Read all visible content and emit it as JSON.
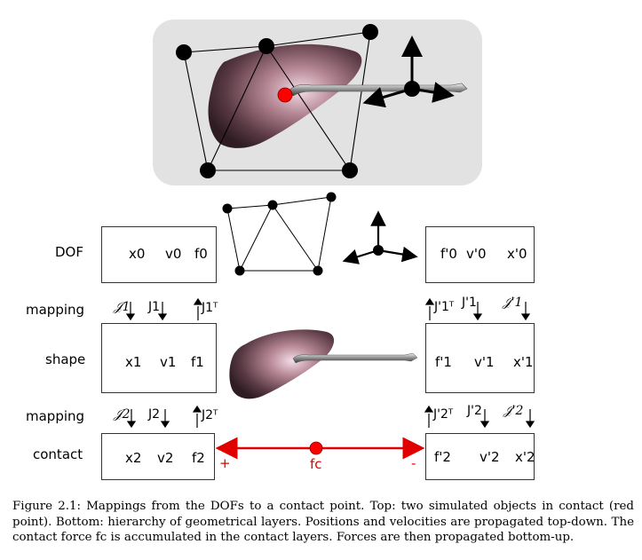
{
  "rows": {
    "dof": "DOF",
    "mapping1": "mapping",
    "shape": "shape",
    "mapping2": "mapping",
    "contact": "contact"
  },
  "left": {
    "dof": [
      "x0",
      "v0",
      "f0"
    ],
    "map1": [
      "𝒥1",
      "J1",
      "J1ᵀ"
    ],
    "shape": [
      "x1",
      "v1",
      "f1"
    ],
    "map2": [
      "𝒥2",
      "J2",
      "J2ᵀ"
    ],
    "contact": [
      "x2",
      "v2",
      "f2"
    ]
  },
  "right": {
    "dof": [
      "f'0",
      "v'0",
      "x'0"
    ],
    "map1": [
      "J'1ᵀ",
      "J'1",
      "𝒥'1"
    ],
    "shape": [
      "f'1",
      "v'1",
      "x'1"
    ],
    "map2": [
      "J'2ᵀ",
      "J'2",
      "𝒥'2"
    ],
    "contact": [
      "f'2",
      "v'2",
      "x'2"
    ]
  },
  "contact_force": {
    "label": "fc",
    "plus": "+",
    "minus": "-",
    "color": "#e00000"
  },
  "caption": {
    "label": "Figure 2.1:",
    "text": "Mappings from the DOFs to a contact point. Top: two simulated objects in contact (red point). Bottom: hierarchy of geometrical layers. Positions and velocities are propagated top-down. The contact force fc is accumulated in the contact layers. Forces are then propagated bottom-up."
  }
}
